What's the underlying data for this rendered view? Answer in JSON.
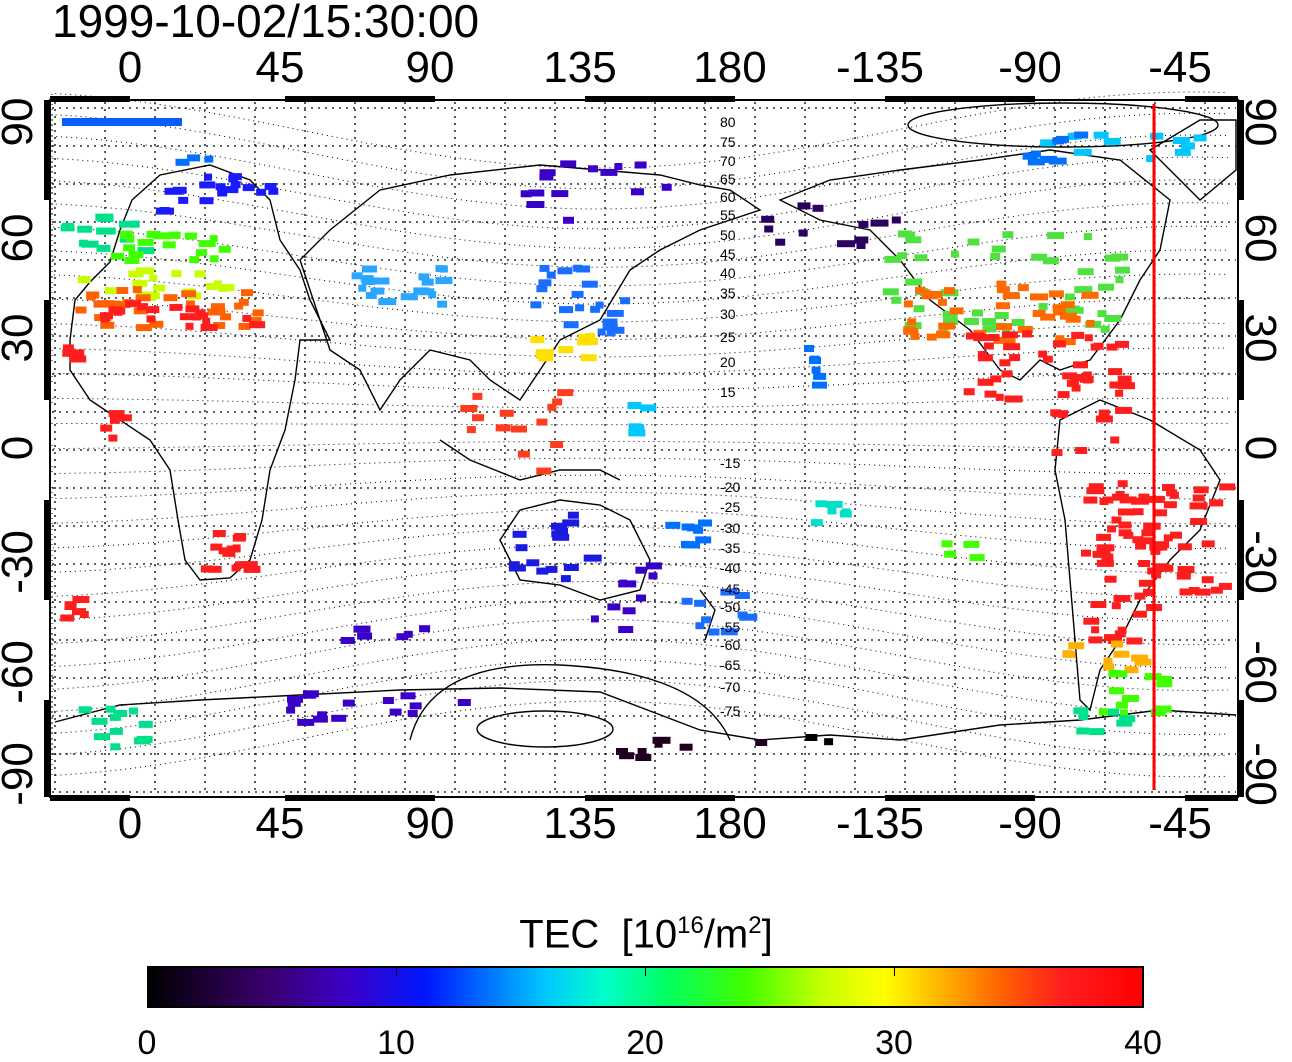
{
  "timestamp": "1999-10-02/15:30:00",
  "x_ticks_top": [
    "0",
    "45",
    "90",
    "135",
    "180",
    "-135",
    "-90",
    "-45"
  ],
  "x_ticks_bottom": [
    "0",
    "45",
    "90",
    "135",
    "180",
    "-135",
    "-90",
    "-45"
  ],
  "y_ticks_left": [
    "90",
    "60",
    "30",
    "0",
    "-30",
    "-60",
    "-90"
  ],
  "y_ticks_right": [
    "90",
    "60",
    "30",
    "0",
    "-30",
    "-60",
    "-90"
  ],
  "mlat_labels_north": [
    "80",
    "75",
    "70",
    "65",
    "60",
    "55",
    "50",
    "45",
    "40",
    "35",
    "30",
    "25",
    "20",
    "15"
  ],
  "mlat_labels_south": [
    "-15",
    "-20",
    "-25",
    "-30",
    "-35",
    "-40",
    "-45",
    "-50",
    "-55",
    "-60",
    "-65",
    "-70",
    "-75"
  ],
  "colorbar": {
    "label": "TEC",
    "unit_base": "[10",
    "unit_exp": "16",
    "unit_mid": "/m",
    "unit_exp2": "2",
    "unit_end": "]",
    "ticks": [
      "0",
      "10",
      "20",
      "30",
      "40"
    ],
    "range": [
      0,
      40
    ]
  },
  "terminator_line": {
    "color": "#ff0000",
    "longitude": -50
  },
  "colors": {
    "low": "#000000",
    "mid": "#00ffc8",
    "high": "#ff0000"
  },
  "map": {
    "lon_range": [
      -25,
      335
    ],
    "lat_range": [
      -90,
      90
    ],
    "grid": "dotted 15-degree"
  }
}
